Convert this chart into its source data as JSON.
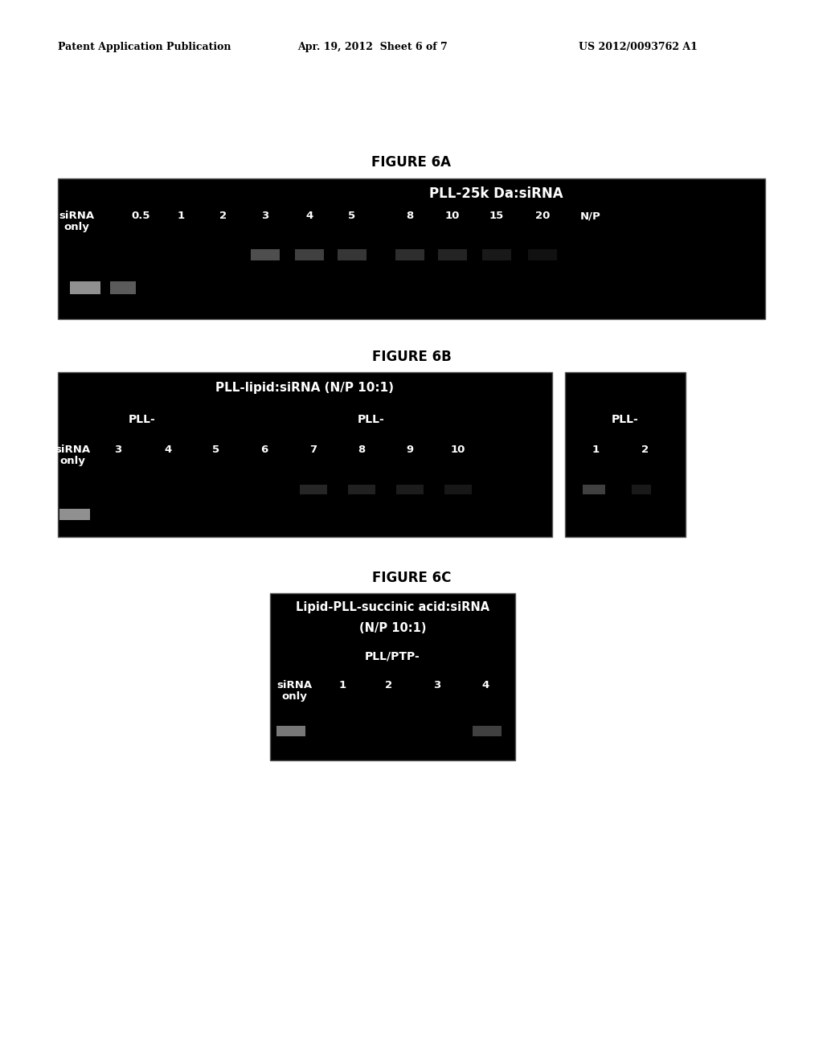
{
  "page_title_left": "Patent Application Publication",
  "page_title_mid": "Apr. 19, 2012  Sheet 6 of 7",
  "page_title_right": "US 2012/0093762 A1",
  "fig6a_title": "FIGURE 6A",
  "fig6b_title": "FIGURE 6B",
  "fig6c_title": "FIGURE 6C",
  "fig6a_header": "PLL-25k Da:siRNA",
  "fig6a_labels": [
    "siRNA\nonly",
    "0.5",
    "1",
    "2",
    "3",
    "4",
    "5",
    "8",
    "10",
    "15",
    "20",
    "N/P"
  ],
  "fig6b_header": "PLL-lipid:siRNA (N/P 10:1)",
  "fig6b_sub1": "PLL-",
  "fig6b_sub2": "PLL-",
  "fig6b_sub3": "PLL-",
  "fig6b_labels_main": [
    "siRNA\nonly",
    "3",
    "4",
    "5",
    "6",
    "7",
    "8",
    "9",
    "10"
  ],
  "fig6b_labels_small": [
    "1",
    "2"
  ],
  "fig6c_header_line1": "Lipid-PLL-succinic acid:siRNA",
  "fig6c_header_line2": "(N/P 10:1)",
  "fig6c_subheader": "PLL/PTP-",
  "fig6c_labels": [
    "siRNA\nonly",
    "1",
    "2",
    "3",
    "4"
  ],
  "bg_color": "#000000",
  "text_color": "#ffffff",
  "page_bg": "#ffffff",
  "page_text": "#000000"
}
